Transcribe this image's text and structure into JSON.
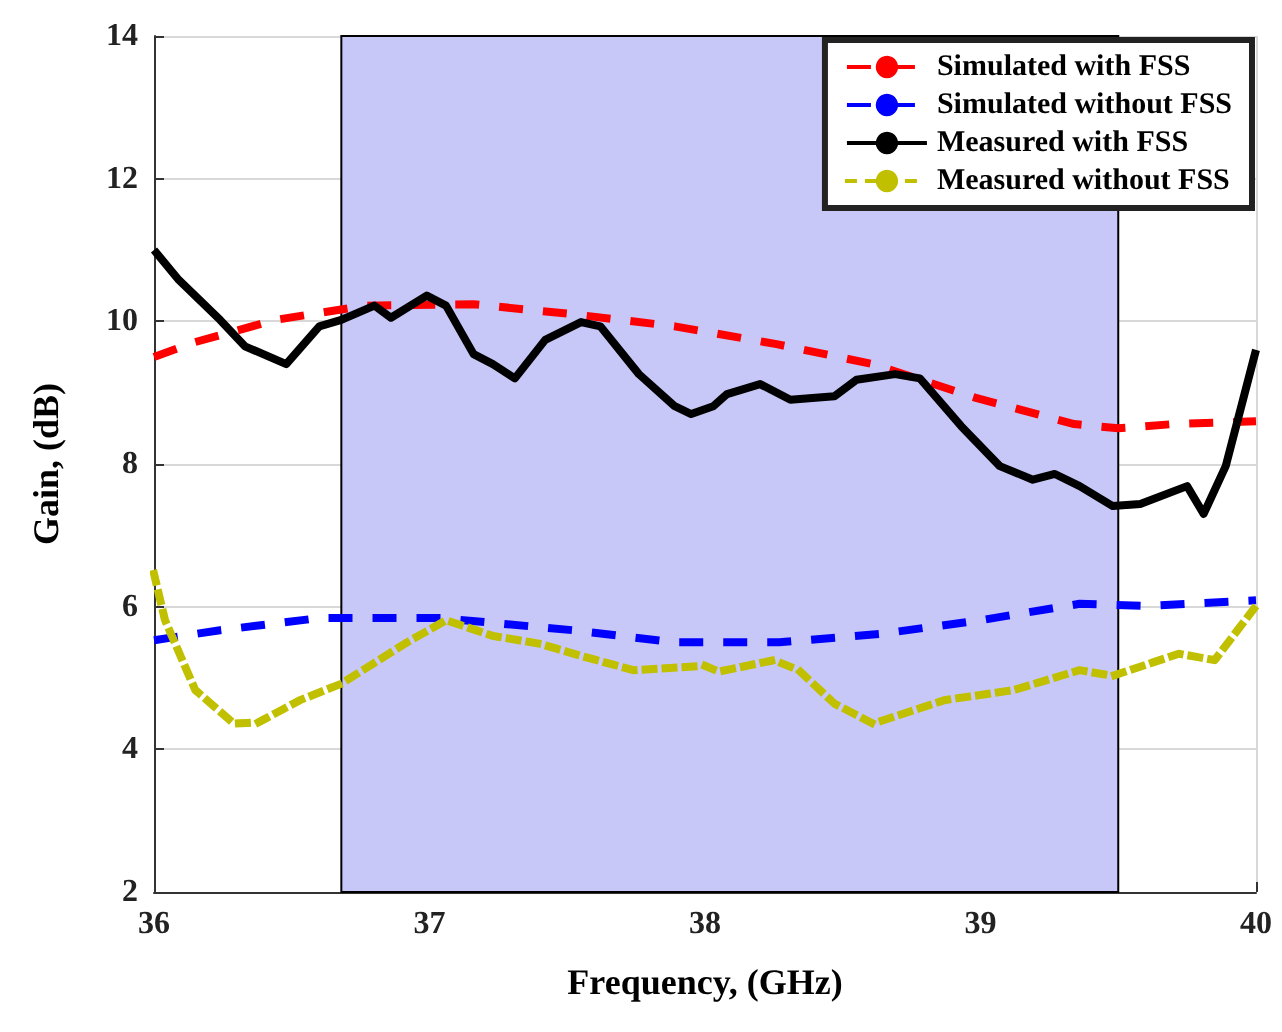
{
  "chart_data": {
    "type": "line",
    "xlabel": "Frequency, (GHz)",
    "ylabel": "Gain, (dB)",
    "xlim": [
      36,
      40
    ],
    "xticks": [
      36,
      37,
      38,
      39,
      40
    ],
    "ylim": [
      2,
      14
    ],
    "yticks": [
      2,
      4,
      6,
      8,
      10,
      12,
      14
    ],
    "grid": true,
    "legend": "top right",
    "marker": "none",
    "bands": [
      {
        "axis": "x",
        "from": 36.68,
        "to": 39.5,
        "color": "#c8c8f8"
      }
    ],
    "series": [
      {
        "name": "Simulated with FSS",
        "color": "#ff0000",
        "line_style": "dashed",
        "x": [
          36,
          36.15,
          36.44,
          36.77,
          37.16,
          37.52,
          37.89,
          38.26,
          38.61,
          38.98,
          39.34,
          39.5,
          39.7,
          40
        ],
        "values": [
          9.5,
          9.71,
          10.02,
          10.22,
          10.24,
          10.1,
          9.93,
          9.68,
          9.4,
          8.93,
          8.56,
          8.5,
          8.56,
          8.6
        ]
      },
      {
        "name": "Simulated without FSS",
        "color": "#0000ff",
        "line_style": "dashed",
        "x": [
          36,
          36.24,
          36.6,
          37.04,
          37.52,
          37.89,
          38.27,
          38.64,
          39,
          39.36,
          39.6,
          40
        ],
        "values": [
          5.53,
          5.67,
          5.84,
          5.84,
          5.67,
          5.5,
          5.5,
          5.62,
          5.81,
          6.04,
          6.01,
          6.09
        ]
      },
      {
        "name": "Measured with FSS",
        "color": "#000000",
        "line_style": "solid",
        "x": [
          36,
          36.09,
          36.24,
          36.33,
          36.48,
          36.6,
          36.68,
          36.8,
          36.86,
          36.99,
          37.06,
          37.16,
          37.23,
          37.31,
          37.42,
          37.55,
          37.62,
          37.76,
          37.89,
          37.95,
          38.03,
          38.08,
          38.2,
          38.31,
          38.47,
          38.55,
          38.69,
          38.78,
          38.93,
          39.07,
          39.19,
          39.27,
          39.36,
          39.48,
          39.58,
          39.75,
          39.81,
          39.89,
          40
        ],
        "values": [
          11.0,
          10.58,
          10.02,
          9.65,
          9.4,
          9.93,
          10.02,
          10.22,
          10.05,
          10.36,
          10.22,
          9.54,
          9.4,
          9.2,
          9.74,
          9.99,
          9.93,
          9.26,
          8.81,
          8.7,
          8.81,
          8.98,
          9.12,
          8.9,
          8.95,
          9.18,
          9.26,
          9.2,
          8.53,
          7.97,
          7.78,
          7.86,
          7.69,
          7.41,
          7.44,
          7.69,
          7.3,
          7.97,
          9.6
        ]
      },
      {
        "name": "Measured without FSS",
        "color": "#c0c000",
        "line_style": "dotted",
        "x": [
          36,
          36.04,
          36.15,
          36.29,
          36.38,
          36.53,
          36.68,
          36.91,
          37.06,
          37.23,
          37.4,
          37.55,
          37.74,
          38,
          38.05,
          38.25,
          38.34,
          38.47,
          38.61,
          38.87,
          39.12,
          39.36,
          39.48,
          39.72,
          39.85,
          40
        ],
        "values": [
          6.46,
          5.81,
          4.83,
          4.36,
          4.38,
          4.69,
          4.92,
          5.48,
          5.81,
          5.59,
          5.48,
          5.31,
          5.11,
          5.17,
          5.09,
          5.25,
          5.11,
          4.64,
          4.36,
          4.69,
          4.83,
          5.11,
          5.03,
          5.34,
          5.25,
          6.01
        ]
      }
    ]
  }
}
